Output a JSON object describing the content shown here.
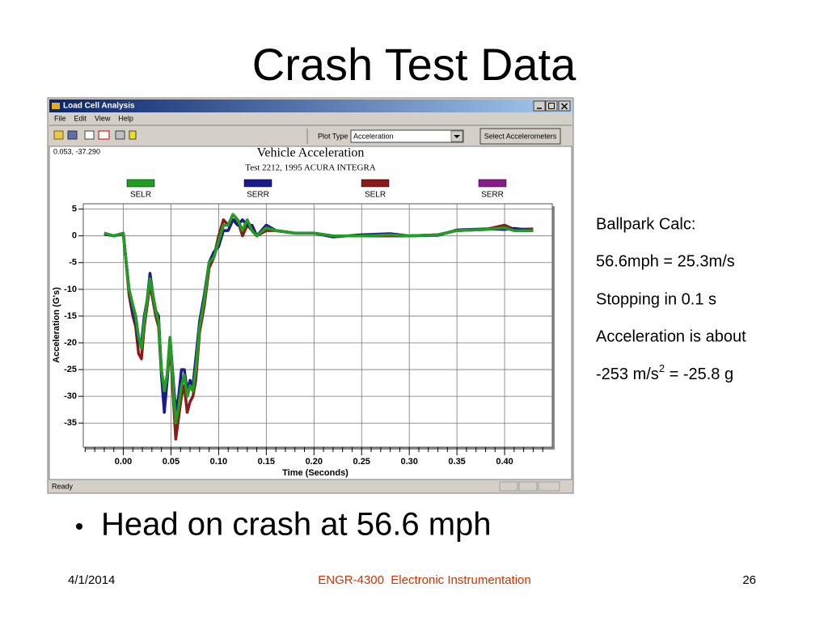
{
  "slide": {
    "title": "Crash Test Data",
    "notes": [
      "Ballpark Calc:",
      "56.6mph = 25.3m/s",
      "Stopping in 0.1 s",
      "Acceleration is about"
    ],
    "result": {
      "prefix": "-253 m/s",
      "superscript": "2",
      "suffix": " = -25.8 g"
    },
    "bullet": "Head on crash at 56.6 mph"
  },
  "footer": {
    "date": "4/1/2014",
    "course": "ENGR-4300  Electronic Instrumentation",
    "page": "26"
  },
  "window": {
    "title": "Load Cell Analysis",
    "menu": [
      "File",
      "Edit",
      "View",
      "Help"
    ],
    "plot_type_label": "Plot Type",
    "plot_type": "Acceleration",
    "button": "Select Accelerometers",
    "readout": "0.053, -37.290",
    "status": "Ready"
  },
  "chart_data": {
    "type": "line",
    "title": "Vehicle Acceleration",
    "subtitle": "Test 2212, 1995 ACURA INTEGRA",
    "x_label": "Time (Seconds)",
    "y_label": "Acceleration (G's)",
    "xlim": [
      -0.042,
      0.45
    ],
    "ylim": [
      -39.5,
      6
    ],
    "xticks": [
      {
        "value": 0,
        "label": "0.00"
      },
      {
        "value": 0.05,
        "label": "0.05"
      },
      {
        "value": 0.1,
        "label": "0.10"
      },
      {
        "value": 0.15,
        "label": "0.15"
      },
      {
        "value": 0.2,
        "label": "0.20"
      },
      {
        "value": 0.25,
        "label": "0.25"
      },
      {
        "value": 0.3,
        "label": "0.30"
      },
      {
        "value": 0.35,
        "label": "0.35"
      },
      {
        "value": 0.4,
        "label": "0.40"
      }
    ],
    "yticks": [
      5,
      0,
      -5,
      -10,
      -15,
      -20,
      -25,
      -30,
      -35
    ],
    "grid": true,
    "x": [
      -0.02,
      -0.01,
      0,
      0.003,
      0.006,
      0.01,
      0.013,
      0.016,
      0.019,
      0.022,
      0.025,
      0.028,
      0.031,
      0.034,
      0.037,
      0.04,
      0.043,
      0.046,
      0.049,
      0.052,
      0.055,
      0.058,
      0.061,
      0.064,
      0.067,
      0.07,
      0.073,
      0.076,
      0.08,
      0.085,
      0.09,
      0.095,
      0.1,
      0.105,
      0.11,
      0.115,
      0.12,
      0.125,
      0.13,
      0.135,
      0.14,
      0.15,
      0.16,
      0.18,
      0.2,
      0.22,
      0.25,
      0.28,
      0.3,
      0.33,
      0.35,
      0.38,
      0.4,
      0.41,
      0.43
    ],
    "series": [
      {
        "name": "SELR",
        "color": "#1f9e1f",
        "values": [
          0.5,
          0,
          0.5,
          -5,
          -10,
          -13,
          -15,
          -19,
          -21,
          -16,
          -12,
          -8,
          -11,
          -14,
          -16,
          -25,
          -29,
          -26,
          -19,
          -27,
          -35,
          -32,
          -28,
          -26,
          -30,
          -28,
          -29,
          -25,
          -17,
          -12,
          -5,
          -4,
          -1,
          2,
          2,
          4,
          3,
          1,
          3,
          1,
          0,
          1.5,
          1,
          0.5,
          0.5,
          0,
          0,
          0.2,
          0,
          0.2,
          1,
          1.2,
          1.5,
          1,
          1
        ]
      },
      {
        "name": "SERR",
        "color": "#1a1a8c",
        "values": [
          0.3,
          0,
          0.3,
          -5,
          -10,
          -14,
          -16,
          -20,
          -20,
          -15,
          -12,
          -7,
          -11,
          -14,
          -15,
          -26,
          -33,
          -27,
          -19,
          -26,
          -33,
          -30,
          -25,
          -25,
          -29,
          -27,
          -28,
          -23,
          -16,
          -11,
          -5,
          -3,
          -2,
          1,
          1,
          3,
          2,
          3,
          2,
          2,
          0,
          2,
          1,
          0.5,
          0.5,
          -0.2,
          0.2,
          0.4,
          0,
          0.1,
          1.1,
          1.3,
          1.2,
          1.4,
          1
        ]
      },
      {
        "name": "SELR",
        "color": "#8b1a1a",
        "values": [
          0.5,
          0,
          0.5,
          -5,
          -11,
          -15,
          -17,
          -22,
          -23,
          -17,
          -13,
          -9,
          -12,
          -15,
          -17,
          -26,
          -30,
          -27,
          -20,
          -29,
          -38,
          -34,
          -30,
          -28,
          -33,
          -31,
          -30,
          -27,
          -18,
          -13,
          -6,
          -4,
          0,
          3,
          2,
          3,
          3,
          0,
          2,
          1,
          0,
          1,
          1,
          0.5,
          0.5,
          0,
          0,
          0,
          0,
          0.2,
          1,
          1.2,
          2,
          1.2,
          1.3
        ]
      },
      {
        "name": "SERR",
        "color": "#8b1a8b",
        "values": [
          0.5,
          0,
          0.5,
          -5,
          -10,
          -13,
          -15,
          -19,
          -21,
          -16,
          -12,
          -8,
          -11,
          -14,
          -16,
          -25,
          -29,
          -26,
          -19,
          -27,
          -35,
          -32,
          -28,
          -26,
          -30,
          -28,
          -29,
          -25,
          -17,
          -12,
          -5,
          -4,
          -1,
          2,
          2,
          4,
          3,
          1,
          3,
          1,
          0,
          1.5,
          1,
          0.5,
          0.5,
          0,
          0,
          0.2,
          0,
          0.2,
          1,
          1.2,
          1.5,
          1,
          1
        ]
      }
    ]
  }
}
